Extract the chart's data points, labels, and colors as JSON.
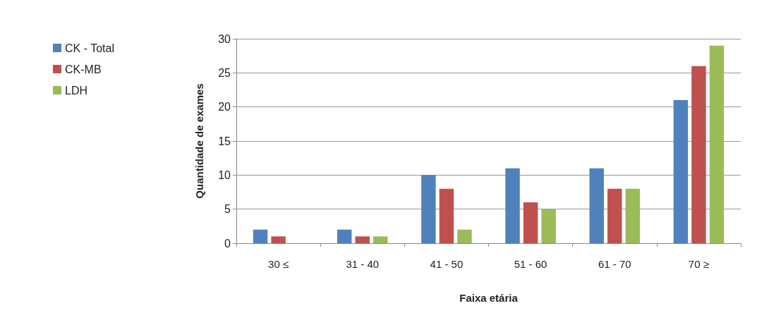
{
  "chart_data": {
    "type": "bar",
    "xlabel": "Faixa etária",
    "ylabel": "Quantidade de exames",
    "categories": [
      "30 ≤",
      "31 - 40",
      "41 - 50",
      "51 - 60",
      "61 - 70",
      "70 ≥"
    ],
    "series": [
      {
        "name": "CK - Total",
        "color": "#4f81bd",
        "values": [
          2,
          2,
          10,
          11,
          11,
          21
        ]
      },
      {
        "name": "CK-MB",
        "color": "#c0504d",
        "values": [
          1,
          1,
          8,
          6,
          8,
          26
        ]
      },
      {
        "name": "LDH",
        "color": "#9bbb59",
        "values": [
          0,
          1,
          2,
          5,
          8,
          29
        ]
      }
    ],
    "ylim": [
      0,
      30
    ],
    "yticks": [
      0,
      5,
      10,
      15,
      20,
      25,
      30
    ],
    "grid": "y",
    "legend": "top left"
  }
}
